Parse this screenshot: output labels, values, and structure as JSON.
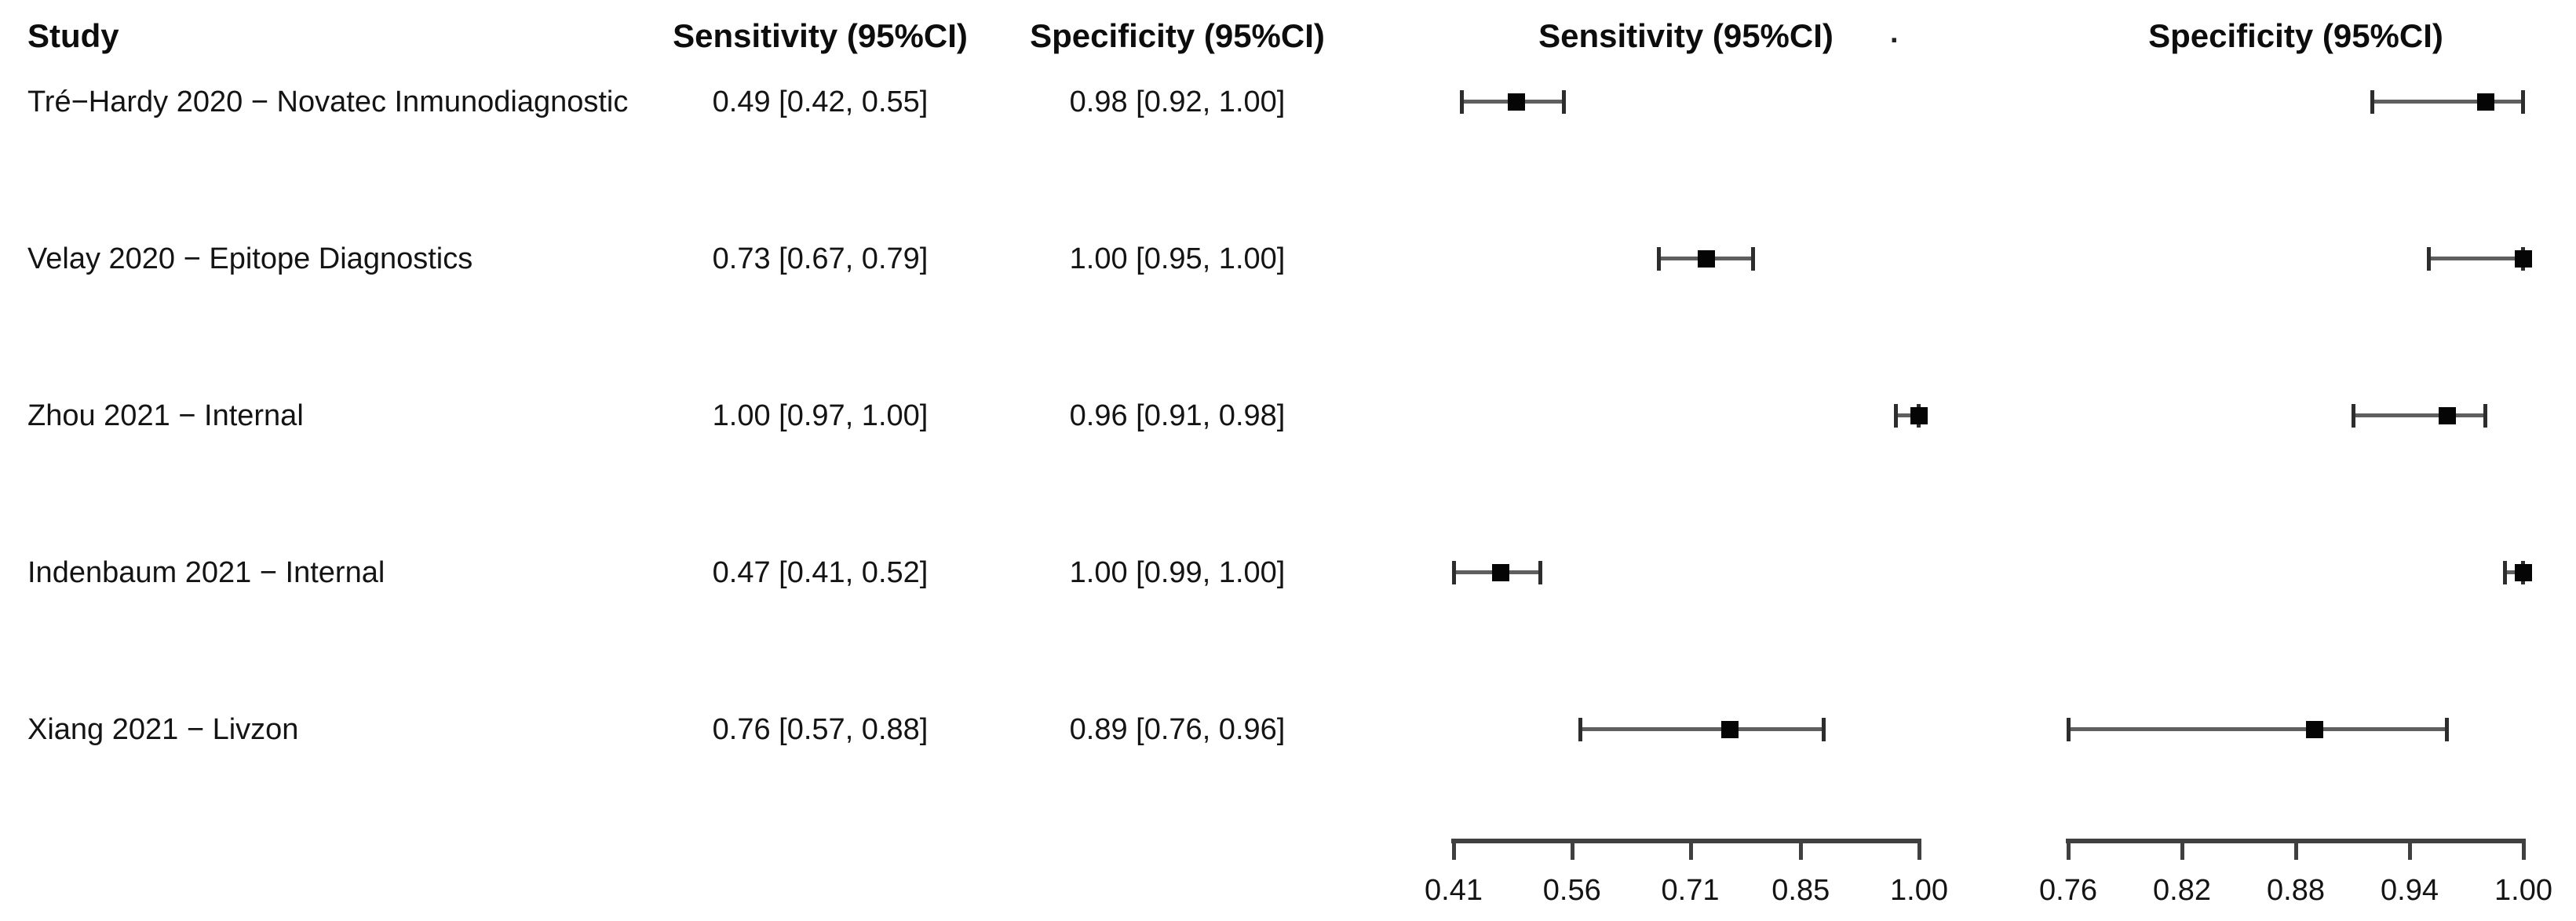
{
  "header": {
    "study": "Study",
    "sens_col": "Sensitivity (95%CI)",
    "spec_col": "Specificity (95%CI)",
    "sens_plot": "Sensitivity (95%CI)",
    "separator_dot": ".",
    "spec_plot": "Specificity (95%CI)"
  },
  "chart_data": {
    "type": "forest",
    "title": "",
    "sens_axis": {
      "range": [
        0.41,
        1.0
      ],
      "ticks": [
        {
          "value": 0.41,
          "label": "0.41"
        },
        {
          "value": 0.56,
          "label": "0.56"
        },
        {
          "value": 0.71,
          "label": "0.71"
        },
        {
          "value": 0.85,
          "label": "0.85"
        },
        {
          "value": 1.0,
          "label": "1.00"
        }
      ]
    },
    "spec_axis": {
      "range": [
        0.76,
        1.0
      ],
      "ticks": [
        {
          "value": 0.76,
          "label": "0.76"
        },
        {
          "value": 0.82,
          "label": "0.82"
        },
        {
          "value": 0.88,
          "label": "0.88"
        },
        {
          "value": 0.94,
          "label": "0.94"
        },
        {
          "value": 1.0,
          "label": "1.00"
        }
      ]
    },
    "studies": [
      {
        "label": "Tré−Hardy 2020 − Novatec Inmunodiagnostic",
        "sensitivity": {
          "text": "0.49 [0.42, 0.55]",
          "est": 0.49,
          "lo": 0.42,
          "hi": 0.55
        },
        "specificity": {
          "text": "0.98 [0.92, 1.00]",
          "est": 0.98,
          "lo": 0.92,
          "hi": 1.0
        }
      },
      {
        "label": "Velay 2020 − Epitope Diagnostics",
        "sensitivity": {
          "text": "0.73 [0.67, 0.79]",
          "est": 0.73,
          "lo": 0.67,
          "hi": 0.79
        },
        "specificity": {
          "text": "1.00 [0.95, 1.00]",
          "est": 1.0,
          "lo": 0.95,
          "hi": 1.0
        }
      },
      {
        "label": "Zhou 2021 − Internal",
        "sensitivity": {
          "text": "1.00 [0.97, 1.00]",
          "est": 1.0,
          "lo": 0.97,
          "hi": 1.0
        },
        "specificity": {
          "text": "0.96 [0.91, 0.98]",
          "est": 0.96,
          "lo": 0.91,
          "hi": 0.98
        }
      },
      {
        "label": "Indenbaum 2021 − Internal",
        "sensitivity": {
          "text": "0.47 [0.41, 0.52]",
          "est": 0.47,
          "lo": 0.41,
          "hi": 0.52
        },
        "specificity": {
          "text": "1.00 [0.99, 1.00]",
          "est": 1.0,
          "lo": 0.99,
          "hi": 1.0
        }
      },
      {
        "label": "Xiang 2021 − Livzon",
        "sensitivity": {
          "text": "0.76 [0.57, 0.88]",
          "est": 0.76,
          "lo": 0.57,
          "hi": 0.88
        },
        "specificity": {
          "text": "0.89 [0.76, 0.96]",
          "est": 0.89,
          "lo": 0.76,
          "hi": 0.96
        }
      }
    ],
    "colors": {
      "ci_line": "#5f5f5f",
      "whisker": "#2d2d2d",
      "marker": "#050505",
      "axis": "#404040"
    }
  }
}
